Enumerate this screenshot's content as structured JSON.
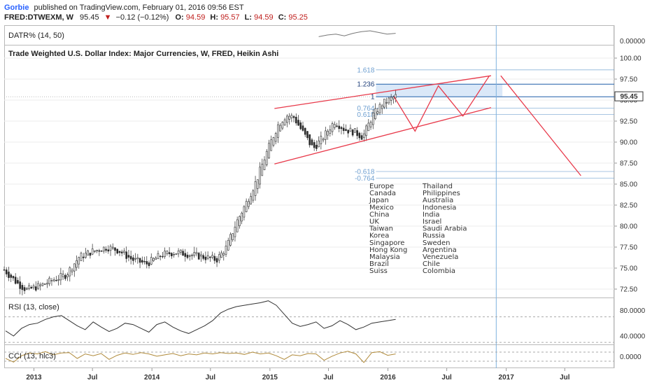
{
  "header": {
    "author": "Gorbie",
    "published_text": "published on TradingView.com, February 01, 2016 09:56 EST",
    "symbol": "FRED:DTWEXM, W",
    "last": "95.45",
    "change": "−0.12 (−0.12%)",
    "o_label": "O:",
    "o_value": "94.59",
    "h_label": "H:",
    "h_value": "95.57",
    "l_label": "L:",
    "l_value": "94.59",
    "c_label": "C:",
    "c_value": "95.25"
  },
  "colors": {
    "accent": "#2962ff",
    "down": "#c0201e",
    "value_red": "#c0201e",
    "trend": "#e8394a",
    "fib": "#6e9fd0",
    "fib_band": "#bcd5f2",
    "vline": "#7fb2de",
    "candle": "#2b2b2b",
    "indicator_line": "#333333",
    "cci_line": "#b08a3a"
  },
  "chart_data": [
    {
      "type": "line",
      "title": "DATR% (14, 50)",
      "y_tick_labels": [
        "0.00000"
      ],
      "series": [
        {
          "values": [
            0.3,
            0.5,
            0.6,
            0.4,
            0.7,
            0.9,
            1.0,
            0.8,
            0.6,
            0.7
          ]
        }
      ]
    },
    {
      "type": "candlestick",
      "title": "Trade Weighted U.S. Dollar Index: Major Currencies, W, FRED, Heikin Ashi",
      "ylim": [
        71.5,
        101.5
      ],
      "y_ticks": [
        72.5,
        75,
        77.5,
        80,
        82.5,
        85,
        87.5,
        90,
        92.5,
        95,
        97.5,
        100
      ],
      "y_tick_labels": [
        "72.50",
        "75.00",
        "77.50",
        "80.00",
        "82.50",
        "85.00",
        "87.50",
        "90.00",
        "92.50",
        "95.00",
        "97.50",
        "100.00"
      ],
      "x_tick_labels": [
        "2013",
        "Jul",
        "2014",
        "Jul",
        "2015",
        "Jul",
        "2016",
        "Jul",
        "2017",
        "Jul"
      ],
      "x_start": "2012-10-01",
      "x_end": "2017-12-01",
      "x_label_dates": [
        "2013-01-01",
        "2013-07-01",
        "2014-01-01",
        "2014-07-01",
        "2015-01-01",
        "2015-07-01",
        "2016-01-01",
        "2016-07-01",
        "2017-01-01",
        "2017-07-01"
      ],
      "price_anchors": [
        [
          "2012-10-01",
          74.8
        ],
        [
          "2012-11-10",
          73.2
        ],
        [
          "2012-12-10",
          72.4
        ],
        [
          "2013-01-20",
          72.9
        ],
        [
          "2013-03-01",
          73.6
        ],
        [
          "2013-04-10",
          74.2
        ],
        [
          "2013-05-20",
          76.3
        ],
        [
          "2013-07-01",
          77.0
        ],
        [
          "2013-08-15",
          77.5
        ],
        [
          "2013-09-20",
          77.1
        ],
        [
          "2013-11-01",
          76.0
        ],
        [
          "2013-12-15",
          75.5
        ],
        [
          "2014-02-01",
          76.6
        ],
        [
          "2014-03-15",
          76.9
        ],
        [
          "2014-05-01",
          76.6
        ],
        [
          "2014-06-15",
          76.3
        ],
        [
          "2014-07-20",
          76.0
        ],
        [
          "2014-08-20",
          77.5
        ],
        [
          "2014-09-20",
          80.5
        ],
        [
          "2014-10-20",
          82.8
        ],
        [
          "2014-11-20",
          85.4
        ],
        [
          "2014-12-20",
          88.6
        ],
        [
          "2015-01-25",
          92.0
        ],
        [
          "2015-02-20",
          93.2
        ],
        [
          "2015-03-15",
          93.0
        ],
        [
          "2015-04-15",
          91.0
        ],
        [
          "2015-05-15",
          89.2
        ],
        [
          "2015-06-15",
          90.6
        ],
        [
          "2015-07-20",
          92.5
        ],
        [
          "2015-08-20",
          91.5
        ],
        [
          "2015-09-20",
          91.2
        ],
        [
          "2015-10-15",
          90.6
        ],
        [
          "2015-11-15",
          93.2
        ],
        [
          "2015-12-15",
          94.6
        ],
        [
          "2016-01-25",
          95.45
        ]
      ],
      "current_price": "95.45",
      "fib_levels": [
        {
          "label": "1.618",
          "value": 98.6
        },
        {
          "label": "1.236",
          "value": 96.9
        },
        {
          "label": "1",
          "value": 95.4
        },
        {
          "label": "0.764",
          "value": 94.05
        },
        {
          "label": "0.618",
          "value": 93.3
        },
        {
          "label": "-0.618",
          "value": 86.5
        },
        {
          "label": "-0.764",
          "value": 85.7
        }
      ],
      "fib_band": [
        95.4,
        96.9
      ],
      "fib_band_dates": [
        "2015-11-25",
        "2016-12-20"
      ],
      "vertical_line_date": "2016-12-01",
      "trend_channel": [
        {
          "from": [
            "2015-01-15",
            94.0
          ],
          "to": [
            "2016-11-15",
            97.9
          ]
        },
        {
          "from": [
            "2015-01-15",
            87.4
          ],
          "to": [
            "2016-11-15",
            94.1
          ]
        }
      ],
      "projection_path": [
        [
          "2016-01-20",
          95.4
        ],
        [
          "2016-03-25",
          91.3
        ],
        [
          "2016-06-05",
          96.7
        ],
        [
          "2016-08-20",
          93.1
        ],
        [
          "2016-11-10",
          97.9
        ]
      ],
      "projection_down": [
        [
          "2016-12-15",
          97.9
        ],
        [
          "2017-08-20",
          86.0
        ]
      ],
      "currency_columns": [
        [
          "Europe",
          "Canada",
          "Japan",
          "Mexico",
          "China",
          "UK",
          "Taiwan",
          "Korea",
          "Singapore",
          "Hong Kong",
          "Malaysia",
          "Brazil",
          "Suiss"
        ],
        [
          "Thailand",
          "Philippines",
          "Australia",
          "Indonesia",
          "India",
          "Israel",
          "Saudi Arabia",
          "Russia",
          "Sweden",
          "Argentina",
          "Venezuela",
          "Chile",
          "Colombia"
        ]
      ]
    },
    {
      "type": "line",
      "title": "RSI (13, close)",
      "ylim": [
        28,
        98
      ],
      "y_ticks": [
        80,
        40
      ],
      "y_tick_labels": [
        "80.0000",
        "40.0000"
      ],
      "guide_levels": [
        70,
        30
      ],
      "series": [
        {
          "values": [
            48,
            40,
            52,
            58,
            60,
            66,
            70,
            72,
            64,
            56,
            50,
            62,
            54,
            47,
            52,
            60,
            58,
            52,
            46,
            58,
            62,
            54,
            48,
            44,
            50,
            56,
            64,
            76,
            82,
            86,
            88,
            90,
            92,
            95,
            88,
            74,
            60,
            55,
            58,
            62,
            52,
            56,
            64,
            58,
            50,
            54,
            60,
            62,
            64,
            66
          ]
        }
      ]
    },
    {
      "type": "line",
      "title": "CCI (13, hlc3)",
      "ylim": [
        -240,
        240
      ],
      "y_ticks": [
        0
      ],
      "y_tick_labels": [
        "0.0000"
      ],
      "guide_levels": [
        100,
        -100
      ],
      "series": [
        {
          "values": [
            -40,
            -120,
            20,
            80,
            60,
            110,
            40,
            80,
            90,
            -40,
            60,
            20,
            70,
            -60,
            30,
            80,
            50,
            90,
            60,
            10,
            40,
            70,
            20,
            60,
            40,
            80,
            60,
            90,
            70,
            80,
            50,
            100,
            60,
            80,
            20,
            -60,
            40,
            20,
            70,
            60,
            -80,
            10,
            80,
            120,
            60,
            -130,
            90,
            110,
            30,
            60
          ]
        }
      ]
    }
  ]
}
